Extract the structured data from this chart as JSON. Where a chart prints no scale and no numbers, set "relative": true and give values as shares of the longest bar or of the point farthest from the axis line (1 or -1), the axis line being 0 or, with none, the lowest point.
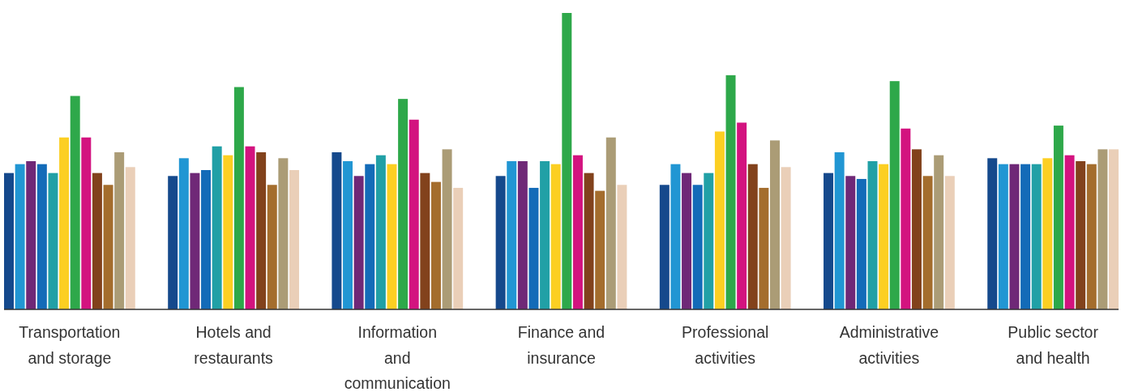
{
  "chart_data": {
    "type": "bar",
    "relative": true,
    "categories": [
      "Transportation and storage",
      "Hotels and restaurants",
      "Information and communication",
      "Finance and insurance",
      "Professional activities",
      "Administrative activities",
      "Public sector and health"
    ],
    "series": [
      {
        "color": "#15498c",
        "values": [
          0.46,
          0.45,
          0.53,
          0.45,
          0.42,
          0.46,
          0.51
        ]
      },
      {
        "color": "#2196d3",
        "values": [
          0.49,
          0.51,
          0.5,
          0.5,
          0.49,
          0.53,
          0.49
        ]
      },
      {
        "color": "#6f2877",
        "values": [
          0.5,
          0.46,
          0.45,
          0.5,
          0.46,
          0.45,
          0.49
        ]
      },
      {
        "color": "#136bb8",
        "values": [
          0.49,
          0.47,
          0.49,
          0.41,
          0.42,
          0.44,
          0.49
        ]
      },
      {
        "color": "#21a0a6",
        "values": [
          0.46,
          0.55,
          0.52,
          0.5,
          0.46,
          0.5,
          0.49
        ]
      },
      {
        "color": "#fccf22",
        "values": [
          0.58,
          0.52,
          0.49,
          0.49,
          0.6,
          0.49,
          0.51
        ]
      },
      {
        "color": "#2ea84a",
        "values": [
          0.72,
          0.75,
          0.71,
          1,
          0.79,
          0.77,
          0.62
        ]
      },
      {
        "color": "#d3137f",
        "values": [
          0.58,
          0.55,
          0.64,
          0.52,
          0.63,
          0.61,
          0.52
        ]
      },
      {
        "color": "#82421c",
        "values": [
          0.46,
          0.53,
          0.46,
          0.46,
          0.49,
          0.54,
          0.5
        ]
      },
      {
        "color": "#a46d2d",
        "values": [
          0.42,
          0.42,
          0.43,
          0.4,
          0.41,
          0.45,
          0.49
        ]
      },
      {
        "color": "#ab9c76",
        "values": [
          0.53,
          0.51,
          0.54,
          0.58,
          0.57,
          0.52,
          0.54
        ]
      },
      {
        "color": "#eacfb8",
        "values": [
          0.48,
          0.47,
          0.41,
          0.42,
          0.48,
          0.45,
          0.54
        ]
      }
    ]
  }
}
